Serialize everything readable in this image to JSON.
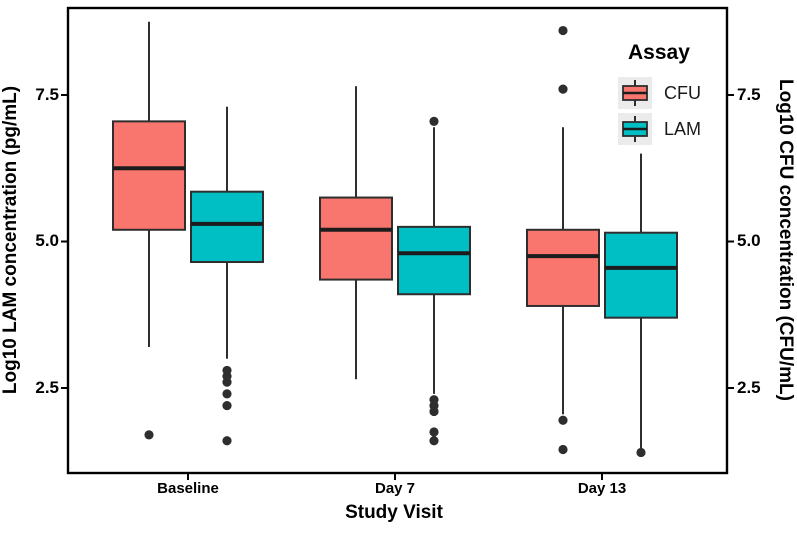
{
  "axes": {
    "left": {
      "title": "Log10 LAM concentration (pg/mL)",
      "ticks": [
        "7.5",
        "5.0",
        "2.5"
      ]
    },
    "right": {
      "title": "Log10 CFU concentration (CFU/mL)",
      "ticks": [
        "7.5",
        "5.0",
        "2.5"
      ]
    },
    "x": {
      "title": "Study Visit",
      "ticks": [
        "Baseline",
        "Day 7",
        "Day 13"
      ]
    }
  },
  "legend": {
    "title": "Assay",
    "items": [
      {
        "label": "CFU",
        "color": "#F8766D"
      },
      {
        "label": "LAM",
        "color": "#00BFC4"
      }
    ]
  },
  "chart_data": {
    "type": "boxplot",
    "title": "",
    "xlabel": "Study Visit",
    "ylabel_left": "Log10 LAM concentration (pg/mL)",
    "ylabel_right": "Log10 CFU concentration (CFU/mL)",
    "categories": [
      "Baseline",
      "Day 7",
      "Day 13"
    ],
    "y_ticks": [
      7.5,
      5.0,
      2.5
    ],
    "ylim": [
      1.2,
      9.0
    ],
    "grid": false,
    "legend_title": "Assay",
    "legend_position": "inside-top-right",
    "series": [
      {
        "name": "CFU",
        "color": "#F8766D",
        "boxes": [
          {
            "category": "Baseline",
            "whisker_low": 3.2,
            "q1": 5.2,
            "median": 6.25,
            "q3": 7.05,
            "whisker_high": 8.75,
            "outliers": [
              1.7
            ]
          },
          {
            "category": "Day 7",
            "whisker_low": 2.65,
            "q1": 4.35,
            "median": 5.2,
            "q3": 5.75,
            "whisker_high": 7.65,
            "outliers": []
          },
          {
            "category": "Day 13",
            "whisker_low": 2.05,
            "q1": 3.9,
            "median": 4.75,
            "q3": 5.2,
            "whisker_high": 6.95,
            "outliers": [
              8.6,
              7.6,
              1.95,
              1.45
            ]
          }
        ]
      },
      {
        "name": "LAM",
        "color": "#00BFC4",
        "boxes": [
          {
            "category": "Baseline",
            "whisker_low": 3.0,
            "q1": 4.65,
            "median": 5.3,
            "q3": 5.85,
            "whisker_high": 7.3,
            "outliers": [
              2.8,
              2.7,
              2.6,
              2.4,
              2.2,
              1.6
            ]
          },
          {
            "category": "Day 7",
            "whisker_low": 2.4,
            "q1": 4.1,
            "median": 4.8,
            "q3": 5.25,
            "whisker_high": 6.95,
            "outliers": [
              7.05,
              2.3,
              2.2,
              2.1,
              1.75,
              1.6
            ]
          },
          {
            "category": "Day 13",
            "whisker_low": 1.45,
            "q1": 3.7,
            "median": 4.55,
            "q3": 5.15,
            "whisker_high": 6.5,
            "outliers": [
              1.4
            ]
          }
        ]
      }
    ]
  }
}
